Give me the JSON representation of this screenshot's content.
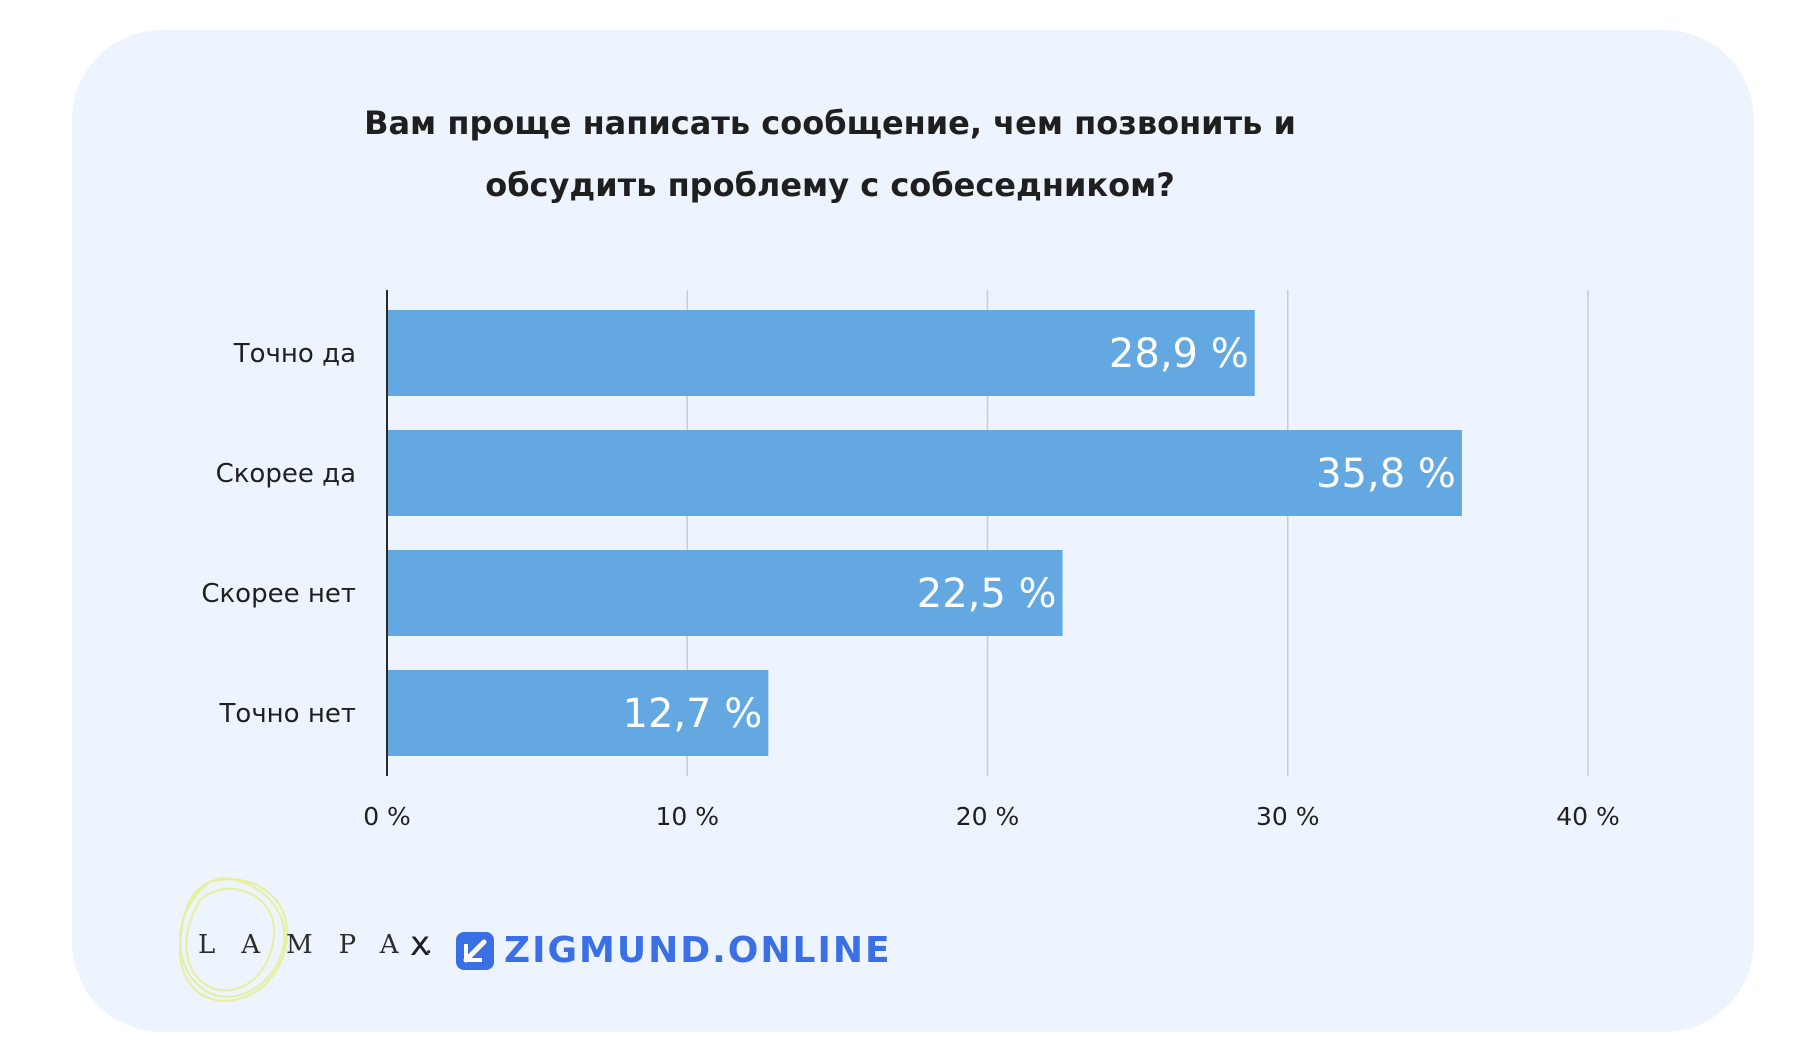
{
  "chart_data": {
    "type": "bar",
    "orientation": "horizontal",
    "title": "Вам проще написать сообщение, чем позвонить и обсудить проблему с собеседником?",
    "categories": [
      "Точно да",
      "Скорее да",
      "Скорее нет",
      "Точно нет"
    ],
    "values": [
      28.9,
      35.8,
      22.5,
      12.7
    ],
    "value_labels": [
      "28,9 %",
      "35,8 %",
      "22,5 %",
      "12,7 %"
    ],
    "xlim": [
      0,
      40
    ],
    "ticks": [
      0,
      10,
      20,
      30,
      40
    ],
    "tick_labels": [
      "0 %",
      "10 %",
      "20 %",
      "30 %",
      "40 %"
    ],
    "grid": true,
    "bar_color": "#63a8e1",
    "xlabel": "",
    "ylabel": ""
  },
  "footer": {
    "lampa_logo": "LAMPA.",
    "separator": "x",
    "zigmund_logo": "ZIGMUND.ONLINE",
    "zigmund_icon": "zigmund-square-icon",
    "zigmund_color": "#3a6fe6"
  }
}
